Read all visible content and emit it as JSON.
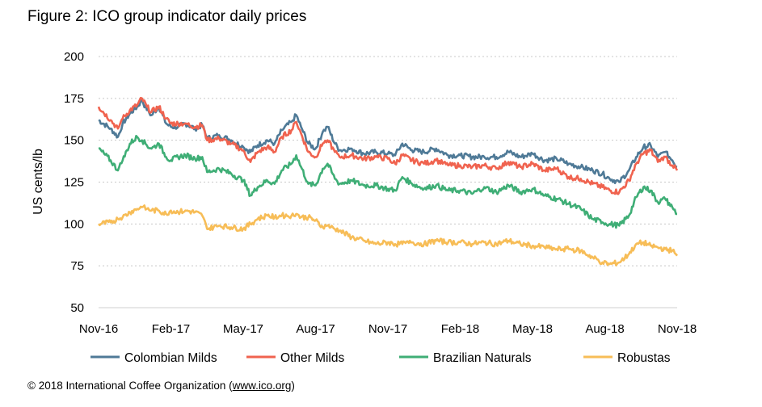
{
  "figure": {
    "title": "Figure 2: ICO group indicator daily prices",
    "copyright_prefix": "© 2018 International Coffee Organization (",
    "copyright_link": "www.ico.org",
    "copyright_suffix": ")"
  },
  "chart_data": {
    "type": "line",
    "title": "Figure 2: ICO group indicator daily prices",
    "xlabel": "",
    "ylabel": "US cents/lb",
    "ylim": [
      50,
      200
    ],
    "yticks": [
      50,
      75,
      100,
      125,
      150,
      175,
      200
    ],
    "grid": true,
    "legend_position": "bottom",
    "x_tick_labels": [
      "Nov-16",
      "Feb-17",
      "May-17",
      "Aug-17",
      "Nov-17",
      "Feb-18",
      "May-18",
      "Aug-18",
      "Nov-18"
    ],
    "x_month_range": [
      0,
      24
    ],
    "series": [
      {
        "name": "Colombian Milds",
        "color": "#4f7a97",
        "points": [
          [
            0,
            162
          ],
          [
            0.5,
            157
          ],
          [
            0.8,
            152
          ],
          [
            1.0,
            160
          ],
          [
            1.3,
            166
          ],
          [
            1.6,
            170
          ],
          [
            1.8,
            174
          ],
          [
            2.0,
            168
          ],
          [
            2.2,
            165
          ],
          [
            2.5,
            170
          ],
          [
            2.8,
            160
          ],
          [
            3.0,
            158
          ],
          [
            3.3,
            158
          ],
          [
            3.6,
            160
          ],
          [
            4.0,
            157
          ],
          [
            4.3,
            159
          ],
          [
            4.5,
            151
          ],
          [
            5.0,
            153
          ],
          [
            5.5,
            150
          ],
          [
            6.0,
            146
          ],
          [
            6.3,
            143
          ],
          [
            6.6,
            147
          ],
          [
            7.0,
            150
          ],
          [
            7.3,
            148
          ],
          [
            7.6,
            156
          ],
          [
            8.0,
            161
          ],
          [
            8.2,
            165
          ],
          [
            8.4,
            158
          ],
          [
            8.7,
            148
          ],
          [
            9.0,
            145
          ],
          [
            9.3,
            155
          ],
          [
            9.5,
            158
          ],
          [
            9.8,
            148
          ],
          [
            10.0,
            144
          ],
          [
            10.5,
            145
          ],
          [
            11.0,
            142
          ],
          [
            11.5,
            143
          ],
          [
            12.0,
            142
          ],
          [
            12.3,
            141
          ],
          [
            12.6,
            148
          ],
          [
            13.0,
            144
          ],
          [
            13.5,
            143
          ],
          [
            14.0,
            145
          ],
          [
            14.5,
            141
          ],
          [
            15.0,
            141
          ],
          [
            15.5,
            140
          ],
          [
            16.0,
            140
          ],
          [
            16.5,
            140
          ],
          [
            17.0,
            143
          ],
          [
            17.5,
            140
          ],
          [
            18.0,
            142
          ],
          [
            18.5,
            138
          ],
          [
            19.0,
            139
          ],
          [
            19.5,
            136
          ],
          [
            20.0,
            134
          ],
          [
            20.5,
            132
          ],
          [
            20.9,
            130
          ],
          [
            21.2,
            127
          ],
          [
            21.6,
            125
          ],
          [
            22.0,
            132
          ],
          [
            22.3,
            140
          ],
          [
            22.6,
            146
          ],
          [
            22.9,
            147
          ],
          [
            23.2,
            140
          ],
          [
            23.5,
            143
          ],
          [
            23.8,
            138
          ],
          [
            24.0,
            134
          ]
        ]
      },
      {
        "name": "Other Milds",
        "color": "#f0634f",
        "points": [
          [
            0,
            170
          ],
          [
            0.5,
            162
          ],
          [
            0.8,
            157
          ],
          [
            1.0,
            163
          ],
          [
            1.3,
            168
          ],
          [
            1.6,
            171
          ],
          [
            1.8,
            175
          ],
          [
            2.0,
            170
          ],
          [
            2.2,
            167
          ],
          [
            2.5,
            170
          ],
          [
            2.8,
            163
          ],
          [
            3.0,
            160
          ],
          [
            3.3,
            160
          ],
          [
            3.6,
            160
          ],
          [
            4.0,
            158
          ],
          [
            4.3,
            159
          ],
          [
            4.5,
            150
          ],
          [
            5.0,
            151
          ],
          [
            5.5,
            148
          ],
          [
            6.0,
            144
          ],
          [
            6.3,
            137
          ],
          [
            6.6,
            143
          ],
          [
            7.0,
            146
          ],
          [
            7.3,
            143
          ],
          [
            7.6,
            152
          ],
          [
            8.0,
            156
          ],
          [
            8.2,
            161
          ],
          [
            8.4,
            154
          ],
          [
            8.7,
            143
          ],
          [
            9.0,
            140
          ],
          [
            9.3,
            148
          ],
          [
            9.5,
            150
          ],
          [
            9.8,
            143
          ],
          [
            10.0,
            140
          ],
          [
            10.5,
            141
          ],
          [
            11.0,
            139
          ],
          [
            11.5,
            140
          ],
          [
            12.0,
            139
          ],
          [
            12.3,
            136
          ],
          [
            12.6,
            141
          ],
          [
            13.0,
            138
          ],
          [
            13.5,
            136
          ],
          [
            14.0,
            138
          ],
          [
            14.5,
            135
          ],
          [
            15.0,
            135
          ],
          [
            15.5,
            134
          ],
          [
            16.0,
            135
          ],
          [
            16.5,
            133
          ],
          [
            17.0,
            137
          ],
          [
            17.5,
            134
          ],
          [
            18.0,
            136
          ],
          [
            18.5,
            132
          ],
          [
            19.0,
            133
          ],
          [
            19.5,
            128
          ],
          [
            20.0,
            127
          ],
          [
            20.5,
            124
          ],
          [
            20.9,
            122
          ],
          [
            21.2,
            120
          ],
          [
            21.6,
            119
          ],
          [
            22.0,
            126
          ],
          [
            22.3,
            136
          ],
          [
            22.6,
            142
          ],
          [
            22.9,
            144
          ],
          [
            23.2,
            137
          ],
          [
            23.5,
            140
          ],
          [
            23.8,
            135
          ],
          [
            24.0,
            132
          ]
        ]
      },
      {
        "name": "Brazilian Naturals",
        "color": "#3fae76",
        "points": [
          [
            0,
            145
          ],
          [
            0.5,
            138
          ],
          [
            0.8,
            132
          ],
          [
            1.0,
            138
          ],
          [
            1.3,
            148
          ],
          [
            1.6,
            152
          ],
          [
            1.8,
            150
          ],
          [
            2.0,
            147
          ],
          [
            2.2,
            145
          ],
          [
            2.5,
            148
          ],
          [
            2.8,
            140
          ],
          [
            3.0,
            138
          ],
          [
            3.3,
            140
          ],
          [
            3.6,
            141
          ],
          [
            4.0,
            139
          ],
          [
            4.3,
            140
          ],
          [
            4.5,
            131
          ],
          [
            5.0,
            133
          ],
          [
            5.5,
            130
          ],
          [
            6.0,
            126
          ],
          [
            6.3,
            117
          ],
          [
            6.6,
            122
          ],
          [
            7.0,
            126
          ],
          [
            7.3,
            124
          ],
          [
            7.6,
            132
          ],
          [
            8.0,
            136
          ],
          [
            8.2,
            141
          ],
          [
            8.4,
            134
          ],
          [
            8.7,
            124
          ],
          [
            9.0,
            123
          ],
          [
            9.3,
            133
          ],
          [
            9.5,
            136
          ],
          [
            9.8,
            127
          ],
          [
            10.0,
            124
          ],
          [
            10.5,
            126
          ],
          [
            11.0,
            123
          ],
          [
            11.5,
            123
          ],
          [
            12.0,
            121
          ],
          [
            12.3,
            120
          ],
          [
            12.6,
            128
          ],
          [
            13.0,
            124
          ],
          [
            13.5,
            121
          ],
          [
            14.0,
            123
          ],
          [
            14.5,
            120
          ],
          [
            15.0,
            120
          ],
          [
            15.5,
            118
          ],
          [
            16.0,
            122
          ],
          [
            16.5,
            119
          ],
          [
            17.0,
            123
          ],
          [
            17.5,
            119
          ],
          [
            18.0,
            121
          ],
          [
            18.5,
            117
          ],
          [
            19.0,
            115
          ],
          [
            19.5,
            112
          ],
          [
            20.0,
            109
          ],
          [
            20.5,
            103
          ],
          [
            20.9,
            101
          ],
          [
            21.2,
            100
          ],
          [
            21.6,
            99
          ],
          [
            22.0,
            105
          ],
          [
            22.3,
            116
          ],
          [
            22.6,
            122
          ],
          [
            22.9,
            120
          ],
          [
            23.2,
            113
          ],
          [
            23.5,
            115
          ],
          [
            23.8,
            110
          ],
          [
            24.0,
            106
          ]
        ]
      },
      {
        "name": "Robustas",
        "color": "#f7bd57",
        "points": [
          [
            0,
            100
          ],
          [
            0.5,
            101
          ],
          [
            0.8,
            103
          ],
          [
            1.0,
            104
          ],
          [
            1.3,
            107
          ],
          [
            1.6,
            109
          ],
          [
            1.8,
            110
          ],
          [
            2.0,
            109
          ],
          [
            2.2,
            108
          ],
          [
            2.5,
            108
          ],
          [
            2.8,
            106
          ],
          [
            3.0,
            108
          ],
          [
            3.3,
            107
          ],
          [
            3.6,
            108
          ],
          [
            4.0,
            107
          ],
          [
            4.3,
            105
          ],
          [
            4.5,
            97
          ],
          [
            5.0,
            99
          ],
          [
            5.5,
            98
          ],
          [
            6.0,
            97
          ],
          [
            6.3,
            100
          ],
          [
            6.6,
            103
          ],
          [
            7.0,
            105
          ],
          [
            7.3,
            104
          ],
          [
            7.6,
            105
          ],
          [
            8.0,
            105
          ],
          [
            8.2,
            106
          ],
          [
            8.4,
            104
          ],
          [
            8.7,
            104
          ],
          [
            9.0,
            102
          ],
          [
            9.3,
            98
          ],
          [
            9.5,
            99
          ],
          [
            9.8,
            97
          ],
          [
            10.0,
            96
          ],
          [
            10.5,
            92
          ],
          [
            11.0,
            90
          ],
          [
            11.5,
            88
          ],
          [
            12.0,
            89
          ],
          [
            12.3,
            88
          ],
          [
            12.6,
            88
          ],
          [
            13.0,
            89
          ],
          [
            13.5,
            88
          ],
          [
            14.0,
            90
          ],
          [
            14.5,
            89
          ],
          [
            15.0,
            89
          ],
          [
            15.5,
            88
          ],
          [
            16.0,
            89
          ],
          [
            16.5,
            88
          ],
          [
            17.0,
            90
          ],
          [
            17.5,
            88
          ],
          [
            18.0,
            87
          ],
          [
            18.5,
            86
          ],
          [
            19.0,
            85
          ],
          [
            19.5,
            85
          ],
          [
            20.0,
            84
          ],
          [
            20.5,
            80
          ],
          [
            20.9,
            77
          ],
          [
            21.2,
            76
          ],
          [
            21.6,
            77
          ],
          [
            22.0,
            82
          ],
          [
            22.3,
            88
          ],
          [
            22.6,
            89
          ],
          [
            22.9,
            87
          ],
          [
            23.2,
            86
          ],
          [
            23.5,
            85
          ],
          [
            23.8,
            84
          ],
          [
            24.0,
            81
          ]
        ]
      }
    ]
  }
}
